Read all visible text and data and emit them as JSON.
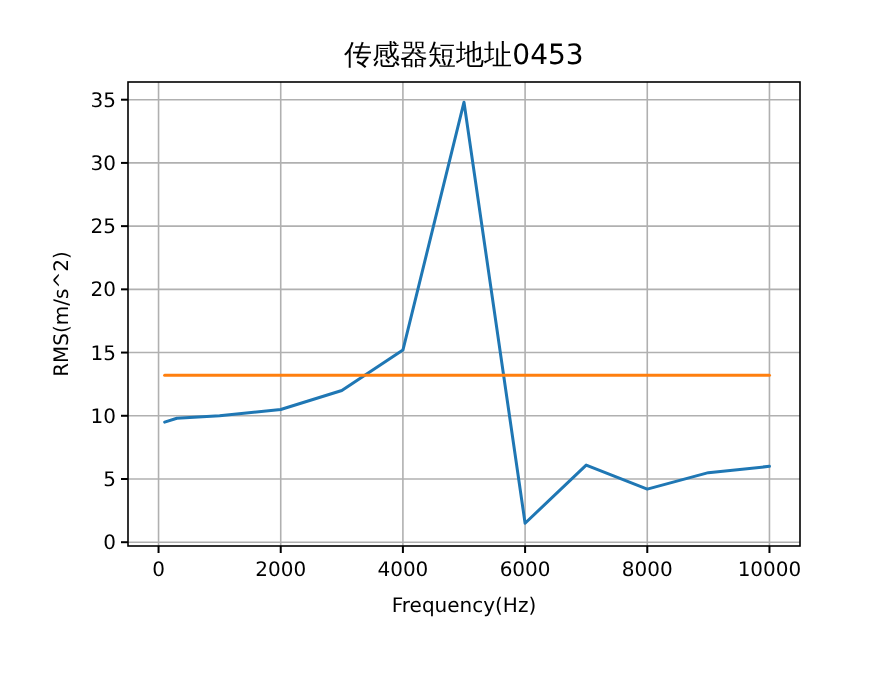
{
  "chart_data": {
    "type": "line",
    "title": "传感器短地址0453",
    "xlabel": "Frequency(Hz)",
    "ylabel": "RMS(m/s^2)",
    "xlim": [
      -500,
      10500
    ],
    "ylim": [
      -0.3,
      36.4
    ],
    "xticks": [
      0,
      2000,
      4000,
      6000,
      8000,
      10000
    ],
    "yticks": [
      0,
      5,
      10,
      15,
      20,
      25,
      30,
      35
    ],
    "grid": true,
    "series": [
      {
        "color": "#1f77b4",
        "x": [
          100,
          300,
          1000,
          2000,
          3000,
          4000,
          5000,
          6000,
          7000,
          8000,
          9000,
          10000
        ],
        "values": [
          9.5,
          9.8,
          10.0,
          10.5,
          12.0,
          15.2,
          34.8,
          1.5,
          6.1,
          4.2,
          5.5,
          6.0
        ]
      },
      {
        "color": "#ff7f0e",
        "x": [
          100,
          10000
        ],
        "values": [
          13.2,
          13.2
        ]
      }
    ]
  }
}
